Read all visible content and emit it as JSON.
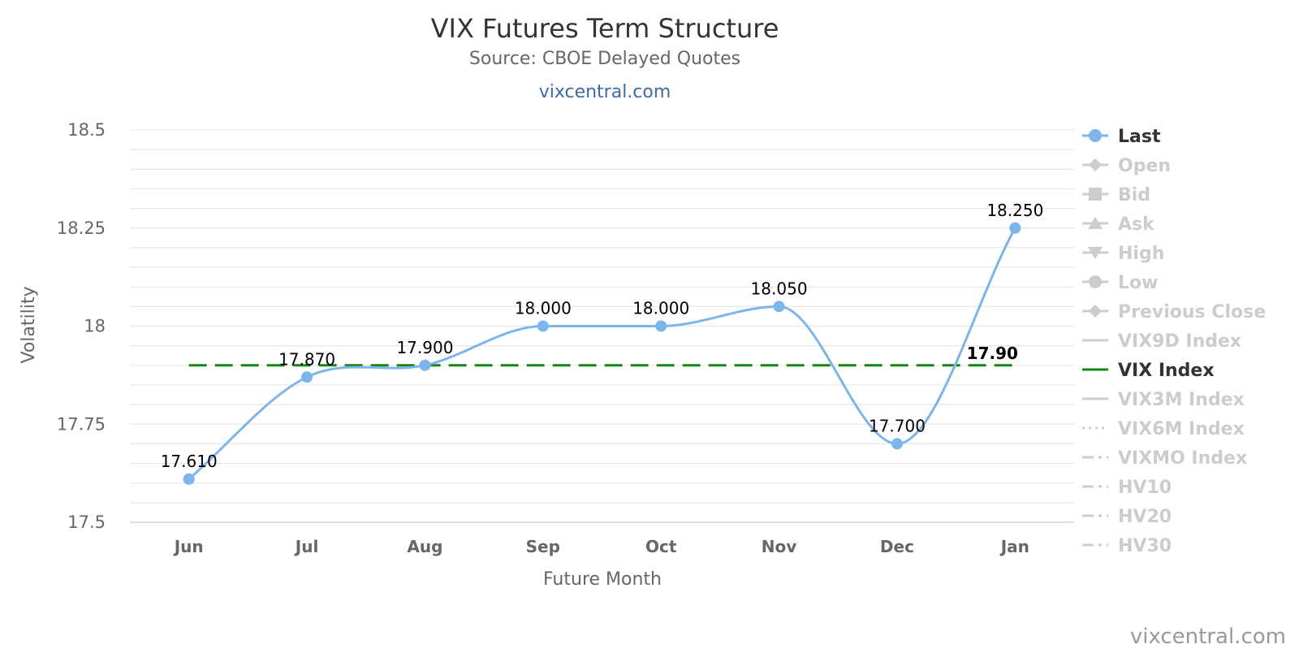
{
  "chart_data": {
    "type": "line",
    "title": "VIX Futures Term Structure",
    "subtitle": "Source: CBOE Delayed Quotes",
    "site_link": "vixcentral.com",
    "credit": "vixcentral.com",
    "xlabel": "Future Month",
    "ylabel": "Volatility",
    "ylim": [
      17.5,
      18.5
    ],
    "y_ticks": [
      "17.5",
      "17.75",
      "18",
      "18.25",
      "18.5"
    ],
    "categories": [
      "Jun",
      "Jul",
      "Aug",
      "Sep",
      "Oct",
      "Nov",
      "Dec",
      "Jan"
    ],
    "grid": true,
    "legend_position": "right",
    "series": [
      {
        "name": "Last",
        "values": [
          17.61,
          17.87,
          17.9,
          18.0,
          18.0,
          18.05,
          17.7,
          18.25
        ],
        "labels": [
          "17.610",
          "17.870",
          "17.900",
          "18.000",
          "18.000",
          "18.050",
          "17.700",
          "18.250"
        ],
        "color": "#7cb5ec"
      },
      {
        "name": "VIX Index",
        "value": 17.9,
        "label": "17.90",
        "color": "#138513"
      }
    ],
    "legend": [
      {
        "name": "Last",
        "active": true,
        "symbol": "circle",
        "line": "solid",
        "color": "#7cb5ec"
      },
      {
        "name": "Open",
        "active": false,
        "symbol": "diamond",
        "line": "solid",
        "color": "#cccccc"
      },
      {
        "name": "Bid",
        "active": false,
        "symbol": "square",
        "line": "solid",
        "color": "#cccccc"
      },
      {
        "name": "Ask",
        "active": false,
        "symbol": "triangle",
        "line": "solid",
        "color": "#cccccc"
      },
      {
        "name": "High",
        "active": false,
        "symbol": "triangle-down",
        "line": "solid",
        "color": "#cccccc"
      },
      {
        "name": "Low",
        "active": false,
        "symbol": "circle",
        "line": "solid",
        "color": "#cccccc"
      },
      {
        "name": "Previous Close",
        "active": false,
        "symbol": "diamond",
        "line": "solid",
        "color": "#cccccc"
      },
      {
        "name": "VIX9D Index",
        "active": false,
        "symbol": "none",
        "line": "solid",
        "color": "#cccccc"
      },
      {
        "name": "VIX Index",
        "active": true,
        "symbol": "none",
        "line": "solid",
        "color": "#138513"
      },
      {
        "name": "VIX3M Index",
        "active": false,
        "symbol": "none",
        "line": "solid",
        "color": "#cccccc"
      },
      {
        "name": "VIX6M Index",
        "active": false,
        "symbol": "none",
        "line": "dotted",
        "color": "#cccccc"
      },
      {
        "name": "VIXMO Index",
        "active": false,
        "symbol": "none",
        "line": "dashdot",
        "color": "#cccccc"
      },
      {
        "name": "HV10",
        "active": false,
        "symbol": "none",
        "line": "dashdot",
        "color": "#cccccc"
      },
      {
        "name": "HV20",
        "active": false,
        "symbol": "none",
        "line": "dashdot",
        "color": "#cccccc"
      },
      {
        "name": "HV30",
        "active": false,
        "symbol": "none",
        "line": "dashdot",
        "color": "#cccccc"
      }
    ]
  }
}
